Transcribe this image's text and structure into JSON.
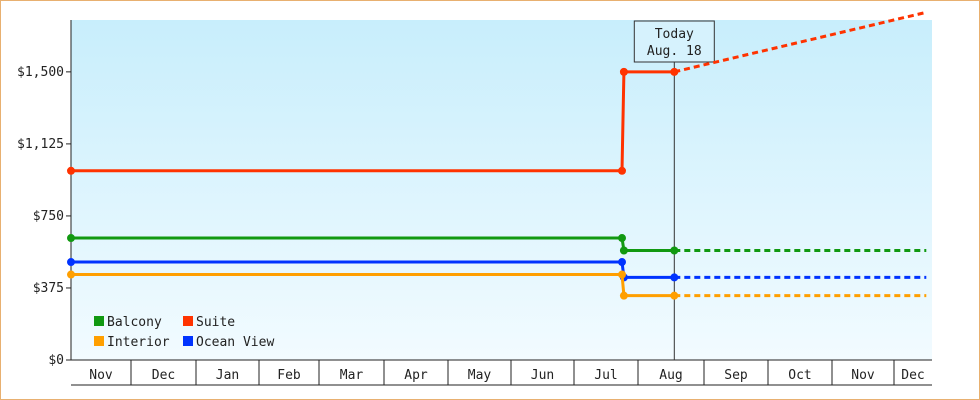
{
  "chart_data": {
    "type": "line",
    "style": "step",
    "months": [
      "Nov",
      "Dec",
      "Jan",
      "Feb",
      "Mar",
      "Apr",
      "May",
      "Jun",
      "Jul",
      "Aug",
      "Sep",
      "Oct",
      "Nov",
      "Dec"
    ],
    "yticks": [
      {
        "value": 0,
        "label": "$0"
      },
      {
        "value": 375,
        "label": "$375"
      },
      {
        "value": 750,
        "label": "$750"
      },
      {
        "value": 1125,
        "label": "$1,125"
      },
      {
        "value": 1500,
        "label": "$1,500"
      }
    ],
    "ylim": [
      0,
      1770
    ],
    "today": {
      "label": "Today",
      "date": "Aug. 18",
      "month_index": 9.55
    },
    "series": [
      {
        "name": "Suite",
        "color": "#ff3300",
        "points": [
          [
            0,
            985
          ],
          [
            8.75,
            985
          ],
          [
            8.78,
            1500
          ],
          [
            9.55,
            1500
          ]
        ],
        "forecast": [
          [
            9.55,
            1500
          ],
          [
            13.85,
            1810
          ]
        ]
      },
      {
        "name": "Balcony",
        "color": "#119911",
        "points": [
          [
            0,
            635
          ],
          [
            8.75,
            635
          ],
          [
            8.78,
            570
          ],
          [
            9.55,
            570
          ]
        ],
        "forecast": [
          [
            9.55,
            570
          ],
          [
            13.85,
            570
          ]
        ]
      },
      {
        "name": "Ocean View",
        "color": "#0033ff",
        "points": [
          [
            0,
            510
          ],
          [
            8.75,
            510
          ],
          [
            8.78,
            430
          ],
          [
            9.55,
            430
          ]
        ],
        "forecast": [
          [
            9.55,
            430
          ],
          [
            13.85,
            430
          ]
        ]
      },
      {
        "name": "Interior",
        "color": "#ff9f00",
        "points": [
          [
            0,
            445
          ],
          [
            8.75,
            445
          ],
          [
            8.78,
            335
          ],
          [
            9.55,
            335
          ]
        ],
        "forecast": [
          [
            9.55,
            335
          ],
          [
            13.85,
            335
          ]
        ]
      }
    ],
    "legend": {
      "placement": "bottom-left",
      "items": [
        {
          "name": "Balcony",
          "color": "#119911"
        },
        {
          "name": "Suite",
          "color": "#ff3300"
        },
        {
          "name": "Interior",
          "color": "#ff9f00"
        },
        {
          "name": "Ocean View",
          "color": "#0033ff"
        }
      ]
    },
    "grid": false,
    "background_gradient": [
      "#c8eefc",
      "#f2fbff"
    ]
  }
}
